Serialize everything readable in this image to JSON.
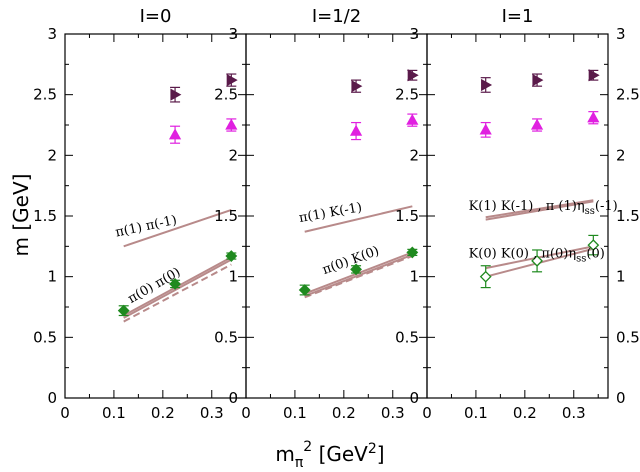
{
  "chart_data": {
    "type": "scatter",
    "ylabel": "m [GeV]",
    "xlabel": "m_π^2 [GeV^2]",
    "xlim": [
      0,
      0.37
    ],
    "ylim": [
      0,
      3
    ],
    "yticks": [
      0,
      0.5,
      1,
      1.5,
      2,
      2.5,
      3
    ],
    "ytick_labels": [
      "0",
      "0.5",
      "1",
      "1.5",
      "2",
      "2.5",
      "3"
    ],
    "xticks": [
      0,
      0.1,
      0.2,
      0.3
    ],
    "xtick_labels": [
      "0",
      "0.1",
      "0.2",
      "0.3"
    ],
    "panels": [
      {
        "title": "I=0",
        "lines": [
          {
            "name": "pi(1) pi(-1)",
            "style": "solid",
            "color": "#b88a8a",
            "x": [
              0.12,
              0.34
            ],
            "y": [
              1.25,
              1.55
            ]
          },
          {
            "name": "pi(0) pi(0) upper",
            "style": "solid",
            "color": "#b88a8a",
            "x": [
              0.12,
              0.34
            ],
            "y": [
              0.68,
              1.16
            ]
          },
          {
            "name": "pi(0) pi(0) lower",
            "style": "solid",
            "color": "#b88a8a",
            "x": [
              0.12,
              0.34
            ],
            "y": [
              0.66,
              1.14
            ]
          },
          {
            "name": "pi(0) pi(0) dashed",
            "style": "dashed",
            "color": "#b88a8a",
            "x": [
              0.12,
              0.34
            ],
            "y": [
              0.63,
              1.1
            ]
          }
        ],
        "series": [
          {
            "name": "green-filled-diamond",
            "marker": "diamond",
            "filled": true,
            "color": "#1f8a1f",
            "x": [
              0.12,
              0.225,
              0.34
            ],
            "y": [
              0.72,
              0.94,
              1.17
            ],
            "err": [
              0.04,
              0.03,
              0.025
            ]
          },
          {
            "name": "magenta-triangle",
            "marker": "triangle-up",
            "filled": true,
            "color": "#e020e0",
            "x": [
              0.225,
              0.34
            ],
            "y": [
              2.17,
              2.25
            ],
            "err": [
              0.07,
              0.05
            ]
          },
          {
            "name": "purple-triangle-right",
            "marker": "triangle-right",
            "filled": true,
            "color": "#5a1a4a",
            "x": [
              0.225,
              0.34
            ],
            "y": [
              2.5,
              2.62
            ],
            "err": [
              0.06,
              0.05
            ]
          }
        ],
        "annotations": [
          {
            "text": "π(1) π(-1)",
            "x": 0.105,
            "y": 1.33,
            "rotate": -12
          },
          {
            "text": "π(0) π(0)",
            "x": 0.135,
            "y": 0.78,
            "rotate": -30
          }
        ]
      },
      {
        "title": "I=1/2",
        "lines": [
          {
            "name": "pi(1) K(-1)",
            "style": "solid",
            "color": "#b88a8a",
            "x": [
              0.12,
              0.34
            ],
            "y": [
              1.37,
              1.58
            ]
          },
          {
            "name": "pi(0) K(0) upper",
            "style": "solid",
            "color": "#b88a8a",
            "x": [
              0.12,
              0.34
            ],
            "y": [
              0.86,
              1.2
            ]
          },
          {
            "name": "pi(0) K(0) lower",
            "style": "solid",
            "color": "#b88a8a",
            "x": [
              0.12,
              0.34
            ],
            "y": [
              0.84,
              1.18
            ]
          },
          {
            "name": "pi(0) K(0) dashed",
            "style": "dashed",
            "color": "#b88a8a",
            "x": [
              0.12,
              0.34
            ],
            "y": [
              0.83,
              1.17
            ]
          }
        ],
        "series": [
          {
            "name": "green-filled-diamond",
            "marker": "diamond",
            "filled": true,
            "color": "#1f8a1f",
            "x": [
              0.12,
              0.225,
              0.34
            ],
            "y": [
              0.89,
              1.06,
              1.2
            ],
            "err": [
              0.04,
              0.03,
              0.025
            ]
          },
          {
            "name": "magenta-triangle",
            "marker": "triangle-up",
            "filled": true,
            "color": "#e020e0",
            "x": [
              0.225,
              0.34
            ],
            "y": [
              2.2,
              2.29
            ],
            "err": [
              0.07,
              0.05
            ]
          },
          {
            "name": "purple-triangle-right",
            "marker": "triangle-right",
            "filled": true,
            "color": "#5a1a4a",
            "x": [
              0.225,
              0.34
            ],
            "y": [
              2.57,
              2.66
            ],
            "err": [
              0.05,
              0.04
            ]
          }
        ],
        "annotations": [
          {
            "text": "π(1) K(-1)",
            "x": 0.11,
            "y": 1.45,
            "rotate": -10
          },
          {
            "text": "π(0) K(0)",
            "x": 0.16,
            "y": 1.02,
            "rotate": -20
          }
        ]
      },
      {
        "title": "I=1",
        "lines": [
          {
            "name": "K(1) K(-1), pi(1) eta_ss(-1) a",
            "style": "solid",
            "color": "#b88a8a",
            "x": [
              0.12,
              0.34
            ],
            "y": [
              1.47,
              1.62
            ]
          },
          {
            "name": "K(1) K(-1), pi(1) eta_ss(-1) b",
            "style": "solid",
            "color": "#b88a8a",
            "x": [
              0.12,
              0.34
            ],
            "y": [
              1.49,
              1.63
            ]
          },
          {
            "name": "K(0) K(0), pi(0) eta_ss(0) upper",
            "style": "solid",
            "color": "#b88a8a",
            "x": [
              0.12,
              0.34
            ],
            "y": [
              1.07,
              1.25
            ]
          },
          {
            "name": "K(0) K(0), pi(0) eta_ss(0) lower",
            "style": "solid",
            "color": "#b88a8a",
            "x": [
              0.12,
              0.34
            ],
            "y": [
              1.0,
              1.23
            ]
          }
        ],
        "series": [
          {
            "name": "green-open-diamond",
            "marker": "diamond",
            "filled": false,
            "color": "#1f8a1f",
            "x": [
              0.12,
              0.225,
              0.34
            ],
            "y": [
              1.0,
              1.13,
              1.26
            ],
            "err": [
              0.09,
              0.09,
              0.08
            ]
          },
          {
            "name": "magenta-triangle",
            "marker": "triangle-up",
            "filled": true,
            "color": "#e020e0",
            "x": [
              0.12,
              0.225,
              0.34
            ],
            "y": [
              2.21,
              2.25,
              2.31
            ],
            "err": [
              0.06,
              0.05,
              0.05
            ]
          },
          {
            "name": "purple-triangle-right",
            "marker": "triangle-right",
            "filled": true,
            "color": "#5a1a4a",
            "x": [
              0.12,
              0.225,
              0.34
            ],
            "y": [
              2.58,
              2.62,
              2.66
            ],
            "err": [
              0.06,
              0.05,
              0.04
            ]
          }
        ],
        "annotations": [
          {
            "text": "K(1) K(-1) ,  π (1)η",
            "sub": "ss",
            "tail": "(-1)",
            "x": 0.085,
            "y": 1.55,
            "rotate": 0
          },
          {
            "text": "K(0) K(0) , π(0)η",
            "sub": "ss",
            "tail": "(0)",
            "x": 0.085,
            "y": 1.16,
            "rotate": 0
          }
        ]
      }
    ]
  }
}
